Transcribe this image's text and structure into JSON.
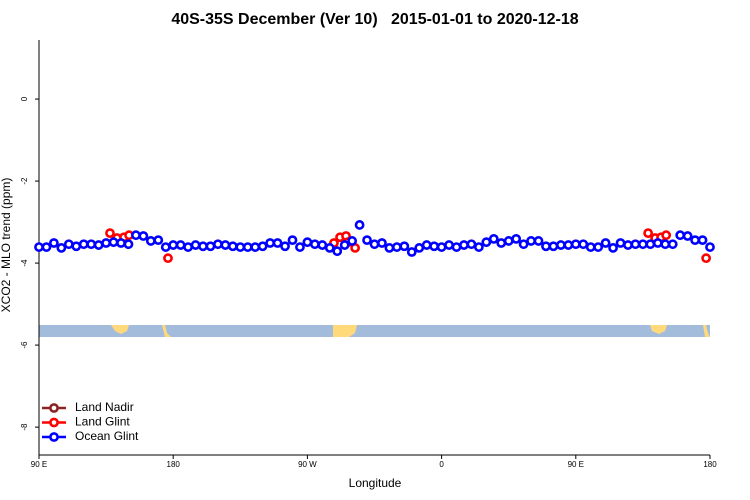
{
  "chart_data": {
    "type": "scatter",
    "title": "40S-35S December (Ver 10)   2015-01-01 to 2020-12-18",
    "x_label": "Longitude",
    "y_label": "XCO2 - MLO trend (ppm)",
    "xlim": [
      90,
      540
    ],
    "ylim": [
      -8.68,
      1.44
    ],
    "xticks": [
      {
        "value": 90,
        "label": "90 E"
      },
      {
        "value": 180,
        "label": "180"
      },
      {
        "value": 270,
        "label": "90 W"
      },
      {
        "value": 360,
        "label": "0"
      },
      {
        "value": 450,
        "label": "90 E"
      },
      {
        "value": 540,
        "label": "180"
      }
    ],
    "yticks": [
      0,
      -2,
      -4,
      -6,
      -8
    ],
    "legend": "bottom-left",
    "series": [
      {
        "name": "Land Nadir",
        "color": "#8b2323",
        "x": [],
        "values": []
      },
      {
        "name": "Land Glint",
        "color": "#ff0000",
        "x": [
          137.6,
          142.3,
          147,
          150.4,
          176.5,
          287.8,
          291.9,
          295.9,
          297.2,
          302,
          498.5,
          503.2,
          507.2,
          510.6,
          537.4
        ],
        "values": [
          -3.27,
          -3.39,
          -3.37,
          -3.32,
          -3.88,
          -3.51,
          -3.37,
          -3.34,
          -3.49,
          -3.63,
          -3.27,
          -3.39,
          -3.37,
          -3.32,
          -3.88
        ]
      },
      {
        "name": "Ocean Glint",
        "color": "#0000ff",
        "x": [
          90,
          95,
          100,
          105,
          110,
          115,
          120,
          125,
          130,
          135,
          140,
          145,
          150,
          155,
          160,
          165,
          170,
          175,
          180,
          185,
          190,
          195,
          200,
          205,
          210,
          215,
          220,
          225,
          230,
          235,
          240,
          245,
          250,
          255,
          260,
          265,
          270,
          275,
          280,
          285,
          290,
          295,
          300,
          305,
          310,
          315,
          320,
          325,
          330,
          335,
          340,
          345,
          350,
          355,
          360,
          365,
          370,
          375,
          380,
          385,
          390,
          395,
          400,
          405,
          410,
          415,
          420,
          425,
          430,
          435,
          440,
          445,
          450,
          455,
          460,
          465,
          470,
          475,
          480,
          485,
          490,
          495,
          500,
          505,
          510,
          515,
          520,
          525,
          530,
          535,
          540
        ],
        "values": [
          -3.61,
          -3.61,
          -3.51,
          -3.63,
          -3.54,
          -3.59,
          -3.54,
          -3.54,
          -3.56,
          -3.51,
          -3.49,
          -3.51,
          -3.54,
          -3.32,
          -3.34,
          -3.46,
          -3.44,
          -3.61,
          -3.56,
          -3.56,
          -3.61,
          -3.56,
          -3.59,
          -3.59,
          -3.54,
          -3.56,
          -3.59,
          -3.61,
          -3.61,
          -3.61,
          -3.59,
          -3.51,
          -3.51,
          -3.59,
          -3.44,
          -3.61,
          -3.49,
          -3.54,
          -3.56,
          -3.63,
          -3.71,
          -3.56,
          -3.46,
          -3.07,
          -3.44,
          -3.54,
          -3.51,
          -3.63,
          -3.61,
          -3.59,
          -3.73,
          -3.63,
          -3.56,
          -3.59,
          -3.61,
          -3.56,
          -3.61,
          -3.56,
          -3.54,
          -3.61,
          -3.49,
          -3.41,
          -3.51,
          -3.46,
          -3.41,
          -3.54,
          -3.46,
          -3.46,
          -3.59,
          -3.59,
          -3.56,
          -3.56,
          -3.54,
          -3.54,
          -3.61,
          -3.61,
          -3.51,
          -3.63,
          -3.51,
          -3.56,
          -3.54,
          -3.54,
          -3.54,
          -3.51,
          -3.54,
          -3.54,
          -3.32,
          -3.34,
          -3.44,
          -3.44,
          -3.61
        ]
      }
    ]
  }
}
